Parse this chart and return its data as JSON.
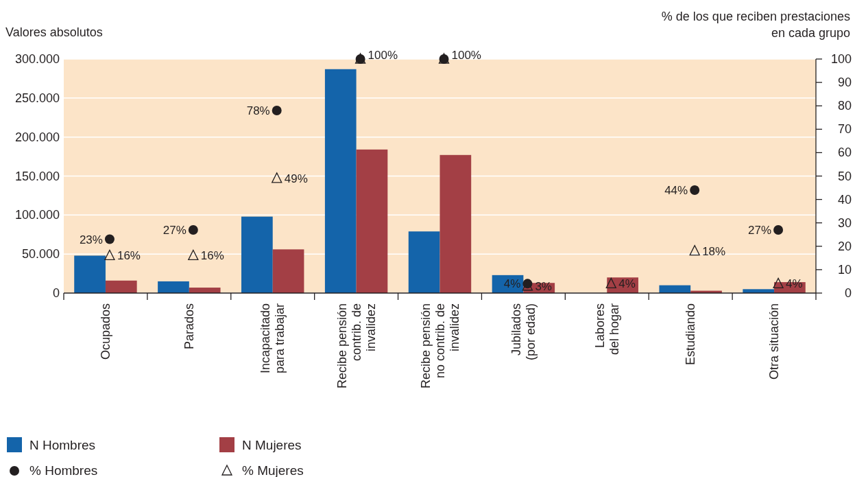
{
  "chart_data": {
    "type": "bar",
    "ylabel": "Valores absolutos",
    "y2label": "% de los que reciben prestaciones en cada grupo",
    "categories": [
      "Ocupados",
      "Parados",
      "Incapacitado\npara trabajar",
      "Recibe pensión\ncontrib. de\ninvalidez",
      "Recibe pensión\nno contrib. de\ninvalidez",
      "Jubilados\n(por edad)",
      "Labores\ndel hogar",
      "Estudiando",
      "Otra situación"
    ],
    "series": [
      {
        "name": "N Hombres",
        "type": "bar",
        "color": "#1464aa",
        "values": [
          48000,
          15000,
          98000,
          287000,
          79000,
          23000,
          null,
          10000,
          5000
        ]
      },
      {
        "name": "N Mujeres",
        "type": "bar",
        "color": "#a33f45",
        "values": [
          16000,
          7000,
          56000,
          184000,
          177000,
          13000,
          20000,
          3000,
          14000
        ]
      },
      {
        "name": "% Hombres",
        "type": "scatter",
        "axis": "y2",
        "marker": "circle",
        "color": "#231f20",
        "values": [
          23,
          27,
          78,
          100,
          100,
          4,
          null,
          44,
          27
        ],
        "value_labels": [
          "23%",
          "27%",
          "78%",
          "100%",
          "100%",
          "4%",
          null,
          "44%",
          "27%"
        ]
      },
      {
        "name": "% Mujeres",
        "type": "scatter",
        "axis": "y2",
        "marker": "triangle",
        "color": "#231f20",
        "values": [
          16,
          16,
          49,
          100,
          100,
          3,
          4,
          18,
          4
        ],
        "value_labels": [
          "16%",
          "16%",
          "49%",
          null,
          null,
          "3%",
          "4%",
          "18%",
          "4%"
        ]
      }
    ],
    "ylim": [
      0,
      300000
    ],
    "yticks": [
      {
        "value": 0,
        "label": "0"
      },
      {
        "value": 50000,
        "label": "50.000"
      },
      {
        "value": 100000,
        "label": "100.000"
      },
      {
        "value": 150000,
        "label": "150.000"
      },
      {
        "value": 200000,
        "label": "200.000"
      },
      {
        "value": 250000,
        "label": "250.000"
      },
      {
        "value": 300000,
        "label": "300.000"
      }
    ],
    "y2lim": [
      0,
      100
    ],
    "y2ticks": [
      0,
      10,
      20,
      30,
      40,
      50,
      60,
      70,
      80,
      90,
      100
    ],
    "grid": "y",
    "legend": "bottom"
  }
}
